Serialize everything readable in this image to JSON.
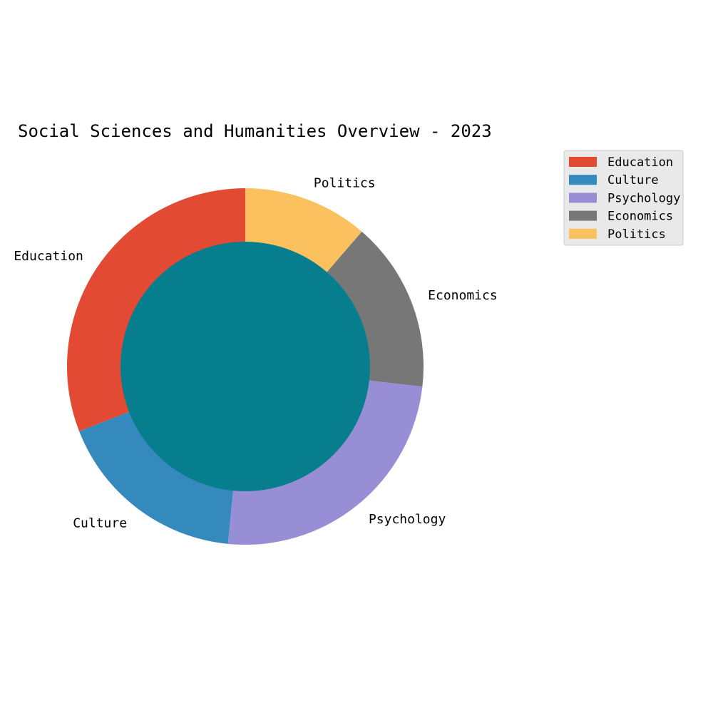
{
  "chart_data": {
    "type": "pie",
    "style": "donut",
    "title": "Social Sciences and Humanities Overview - 2023",
    "categories": [
      "Education",
      "Culture",
      "Psychology",
      "Economics",
      "Politics"
    ],
    "values": [
      30,
      17,
      24,
      15,
      11
    ],
    "colors": [
      "#E24A33",
      "#348ABD",
      "#988ED5",
      "#777777",
      "#FBC15E"
    ],
    "center_color": "#077E8D",
    "start_angle_deg": 90,
    "direction": "counterclockwise",
    "legend": "top-right"
  }
}
